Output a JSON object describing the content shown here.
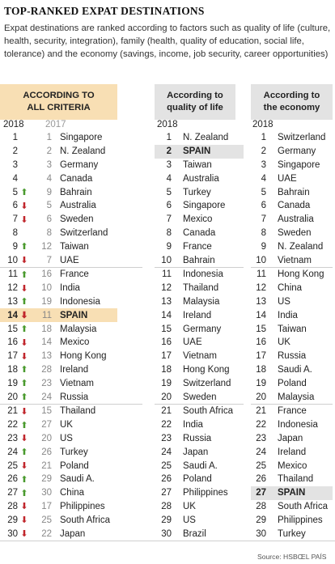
{
  "title": "TOP-RANKED EXPAT DESTINATIONS",
  "subtitle": "Expat destinations are ranked according to factors such as quality of life (culture, health, security, integration), family (health, quality of education, social life, tolerance) and the economy (savings, income, job security, career opportunities)",
  "headers": {
    "all": "According to all criteria",
    "life_line1": "According to",
    "life_line2": "quality of life",
    "economy_line1": "According to",
    "economy_line2": "the economy"
  },
  "years": {
    "current": "2018",
    "previous": "2017"
  },
  "colors": {
    "up": "#4a9a2e",
    "down": "#c0262c",
    "highlight_all": "#f8dfb4",
    "highlight_other": "#e3e3e3"
  },
  "all_criteria": [
    {
      "rank": "1",
      "change": "",
      "prev": "1",
      "country": "Singapore"
    },
    {
      "rank": "2",
      "change": "",
      "prev": "2",
      "country": "N. Zealand"
    },
    {
      "rank": "3",
      "change": "",
      "prev": "3",
      "country": "Germany"
    },
    {
      "rank": "4",
      "change": "",
      "prev": "4",
      "country": "Canada"
    },
    {
      "rank": "5",
      "change": "up",
      "prev": "9",
      "country": "Bahrain"
    },
    {
      "rank": "6",
      "change": "down",
      "prev": "5",
      "country": "Australia"
    },
    {
      "rank": "7",
      "change": "down",
      "prev": "6",
      "country": "Sweden"
    },
    {
      "rank": "8",
      "change": "",
      "prev": "8",
      "country": "Switzerland"
    },
    {
      "rank": "9",
      "change": "up",
      "prev": "12",
      "country": "Taiwan"
    },
    {
      "rank": "10",
      "change": "down",
      "prev": "7",
      "country": "UAE"
    },
    {
      "rank": "11",
      "change": "up",
      "prev": "16",
      "country": "France"
    },
    {
      "rank": "12",
      "change": "down",
      "prev": "10",
      "country": "India"
    },
    {
      "rank": "13",
      "change": "up",
      "prev": "19",
      "country": "Indonesia"
    },
    {
      "rank": "14",
      "change": "down",
      "prev": "11",
      "country": "SPAIN"
    },
    {
      "rank": "15",
      "change": "up",
      "prev": "18",
      "country": "Malaysia"
    },
    {
      "rank": "16",
      "change": "down",
      "prev": "14",
      "country": "Mexico"
    },
    {
      "rank": "17",
      "change": "down",
      "prev": "13",
      "country": "Hong Kong"
    },
    {
      "rank": "18",
      "change": "up",
      "prev": "28",
      "country": "Ireland"
    },
    {
      "rank": "19",
      "change": "up",
      "prev": "23",
      "country": "Vietnam"
    },
    {
      "rank": "20",
      "change": "up",
      "prev": "24",
      "country": "Russia"
    },
    {
      "rank": "21",
      "change": "down",
      "prev": "15",
      "country": "Thailand"
    },
    {
      "rank": "22",
      "change": "up",
      "prev": "27",
      "country": "UK"
    },
    {
      "rank": "23",
      "change": "down",
      "prev": "20",
      "country": "US"
    },
    {
      "rank": "24",
      "change": "up",
      "prev": "26",
      "country": "Turkey"
    },
    {
      "rank": "25",
      "change": "down",
      "prev": "21",
      "country": "Poland"
    },
    {
      "rank": "26",
      "change": "up",
      "prev": "29",
      "country": "Saudi A."
    },
    {
      "rank": "27",
      "change": "up",
      "prev": "30",
      "country": "China"
    },
    {
      "rank": "28",
      "change": "down",
      "prev": "17",
      "country": "Philippines"
    },
    {
      "rank": "29",
      "change": "down",
      "prev": "25",
      "country": "South Africa"
    },
    {
      "rank": "30",
      "change": "down",
      "prev": "22",
      "country": "Japan"
    }
  ],
  "quality_of_life": [
    {
      "rank": "1",
      "country": "N. Zealand"
    },
    {
      "rank": "2",
      "country": "SPAIN"
    },
    {
      "rank": "3",
      "country": "Taiwan"
    },
    {
      "rank": "4",
      "country": "Australia"
    },
    {
      "rank": "5",
      "country": "Turkey"
    },
    {
      "rank": "6",
      "country": "Singapore"
    },
    {
      "rank": "7",
      "country": "Mexico"
    },
    {
      "rank": "8",
      "country": "Canada"
    },
    {
      "rank": "9",
      "country": "France"
    },
    {
      "rank": "10",
      "country": "Bahrain"
    },
    {
      "rank": "11",
      "country": "Indonesia"
    },
    {
      "rank": "12",
      "country": "Thailand"
    },
    {
      "rank": "13",
      "country": "Malaysia"
    },
    {
      "rank": "14",
      "country": "Ireland"
    },
    {
      "rank": "15",
      "country": "Germany"
    },
    {
      "rank": "16",
      "country": "UAE"
    },
    {
      "rank": "17",
      "country": "Vietnam"
    },
    {
      "rank": "18",
      "country": "Hong Kong"
    },
    {
      "rank": "19",
      "country": "Switzerland"
    },
    {
      "rank": "20",
      "country": "Sweden"
    },
    {
      "rank": "21",
      "country": "South Africa"
    },
    {
      "rank": "22",
      "country": "India"
    },
    {
      "rank": "23",
      "country": "Russia"
    },
    {
      "rank": "24",
      "country": "Japan"
    },
    {
      "rank": "25",
      "country": "Saudi A."
    },
    {
      "rank": "26",
      "country": "Poland"
    },
    {
      "rank": "27",
      "country": "Philippines"
    },
    {
      "rank": "28",
      "country": "UK"
    },
    {
      "rank": "29",
      "country": "US"
    },
    {
      "rank": "30",
      "country": "Brazil"
    }
  ],
  "economy": [
    {
      "rank": "1",
      "country": "Switzerland"
    },
    {
      "rank": "2",
      "country": "Germany"
    },
    {
      "rank": "3",
      "country": "Singapore"
    },
    {
      "rank": "4",
      "country": "UAE"
    },
    {
      "rank": "5",
      "country": "Bahrain"
    },
    {
      "rank": "6",
      "country": "Canada"
    },
    {
      "rank": "7",
      "country": "Australia"
    },
    {
      "rank": "8",
      "country": "Sweden"
    },
    {
      "rank": "9",
      "country": "N. Zealand"
    },
    {
      "rank": "10",
      "country": "Vietnam"
    },
    {
      "rank": "11",
      "country": "Hong Kong"
    },
    {
      "rank": "12",
      "country": "China"
    },
    {
      "rank": "13",
      "country": "US"
    },
    {
      "rank": "14",
      "country": "India"
    },
    {
      "rank": "15",
      "country": "Taiwan"
    },
    {
      "rank": "16",
      "country": "UK"
    },
    {
      "rank": "17",
      "country": "Russia"
    },
    {
      "rank": "18",
      "country": "Saudi A."
    },
    {
      "rank": "19",
      "country": "Poland"
    },
    {
      "rank": "20",
      "country": "Malaysia"
    },
    {
      "rank": "21",
      "country": "France"
    },
    {
      "rank": "22",
      "country": "Indonesia"
    },
    {
      "rank": "23",
      "country": "Japan"
    },
    {
      "rank": "24",
      "country": "Ireland"
    },
    {
      "rank": "25",
      "country": "Mexico"
    },
    {
      "rank": "26",
      "country": "Thailand"
    },
    {
      "rank": "27",
      "country": "SPAIN"
    },
    {
      "rank": "28",
      "country": "South Africa"
    },
    {
      "rank": "29",
      "country": "Philippines"
    },
    {
      "rank": "30",
      "country": "Turkey"
    }
  ],
  "footer": {
    "source": "Source: HSBC.",
    "credit": "EL PAÍS"
  }
}
